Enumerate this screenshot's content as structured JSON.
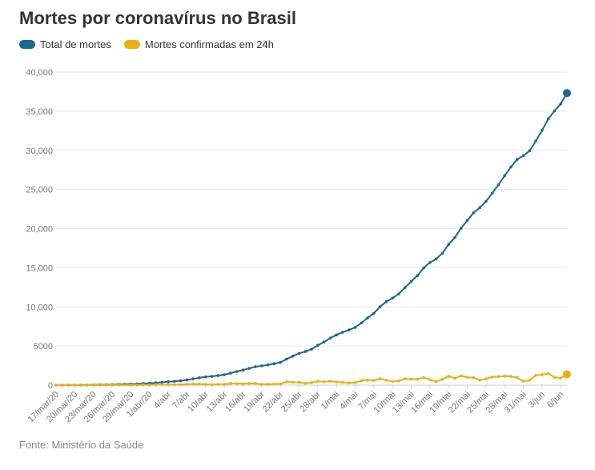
{
  "title": "Mortes por coronavírus no Brasil",
  "source": "Fonte: Ministério da Saúde",
  "legend": [
    {
      "label": "Total de mortes",
      "color": "#1f6690"
    },
    {
      "label": "Mortes confirmadas em 24h",
      "color": "#eab012"
    }
  ],
  "chart_data": {
    "type": "line",
    "title": "Mortes por coronavírus no Brasil",
    "xlabel": "",
    "ylabel": "",
    "ylim": [
      0,
      40000
    ],
    "y_ticks": [
      "0",
      "5000",
      "10,000",
      "15,000",
      "20,000",
      "25,000",
      "30,000",
      "35,000",
      "40,000"
    ],
    "x_tick_labels": [
      "17/mar/20",
      "20/mar/20",
      "23/mar/20",
      "26/mar/20",
      "29/mar/20",
      "1/abr/20",
      "4/abr",
      "7/abr",
      "10/abr",
      "13/abr",
      "16/abr",
      "19/abr",
      "22/abr",
      "25/abr",
      "28/abr",
      "1/mai",
      "4/mai",
      "7/mai",
      "10/mai",
      "13/mai",
      "16/mai",
      "19/mai",
      "22/mai",
      "25/mai",
      "28/mai",
      "31/mai",
      "3/jun",
      "6/jun"
    ],
    "grid": true,
    "legend_position": "top-left",
    "series": [
      {
        "name": "Total de mortes",
        "color": "#1f6690",
        "values": [
          1,
          4,
          7,
          11,
          18,
          25,
          34,
          46,
          57,
          77,
          92,
          114,
          136,
          159,
          201,
          240,
          299,
          359,
          432,
          486,
          553,
          667,
          800,
          941,
          1056,
          1124,
          1223,
          1328,
          1532,
          1736,
          1924,
          2141,
          2354,
          2462,
          2587,
          2741,
          2906,
          3331,
          3704,
          4057,
          4286,
          4603,
          5083,
          5513,
          6006,
          6412,
          6761,
          7051,
          7367,
          7938,
          8588,
          9190,
          10017,
          10656,
          11123,
          11653,
          12461,
          13240,
          13999,
          14962,
          15662,
          16118,
          16853,
          17983,
          18859,
          20047,
          21048,
          22013,
          22666,
          23473,
          24512,
          25598,
          26754,
          27878,
          28834,
          29314,
          29937,
          31199,
          32548,
          34021,
          35026,
          35930,
          37312
        ]
      },
      {
        "name": "Mortes confirmadas em 24h",
        "color": "#eab012",
        "values": [
          1,
          3,
          3,
          4,
          7,
          7,
          9,
          12,
          11,
          20,
          15,
          22,
          22,
          23,
          42,
          39,
          59,
          60,
          73,
          54,
          67,
          114,
          133,
          141,
          115,
          68,
          99,
          105,
          204,
          204,
          188,
          217,
          213,
          108,
          125,
          154,
          165,
          425,
          373,
          353,
          229,
          317,
          480,
          430,
          493,
          406,
          349,
          290,
          316,
          571,
          650,
          602,
          827,
          639,
          467,
          530,
          808,
          779,
          759,
          963,
          700,
          456,
          735,
          1130,
          876,
          1188,
          1001,
          965,
          653,
          807,
          1039,
          1086,
          1156,
          1124,
          956,
          480,
          623,
          1262,
          1349,
          1473,
          1005,
          904,
          1382
        ]
      }
    ]
  }
}
